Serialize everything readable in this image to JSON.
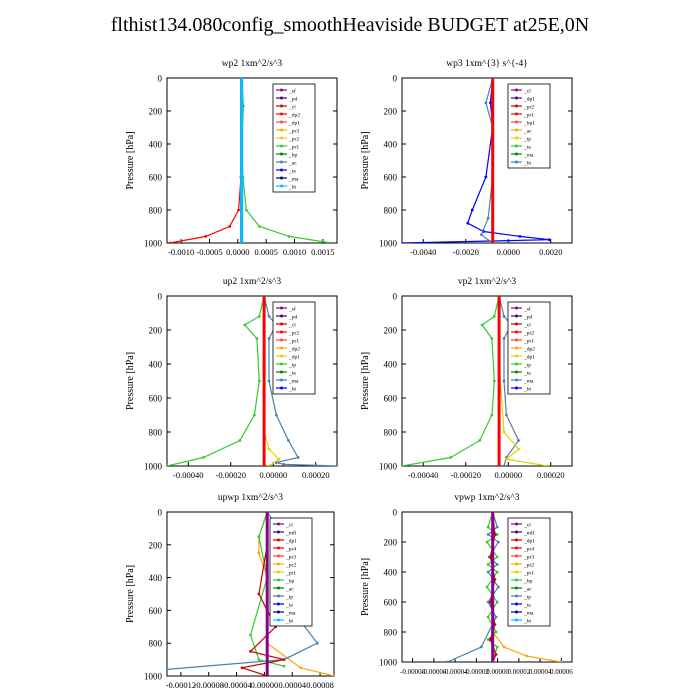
{
  "title": "flthist134.080config_smoothHeaviside  BUDGET at25E,0N",
  "colors": {
    "red": "#ff0000",
    "dred": "#cc0000",
    "purple": "#8b008b",
    "orange": "#ffa500",
    "yellow": "#e6d000",
    "green": "#33cc33",
    "dgreen": "#007f00",
    "blue": "#0000ff",
    "cyan": "#00c0ff",
    "teal": "#4682b4",
    "magenta": "#c000c0",
    "navy": "#000080"
  },
  "chart_data": [
    {
      "type": "line",
      "title": "wp2   1xm^2/s^3",
      "ylabel": "Pressure [hPa]",
      "ylim": [
        1000,
        0
      ],
      "xlim": [
        -0.00125,
        0.0016
      ],
      "yticks": [
        "0",
        "200",
        "400",
        "600",
        "800",
        "1000"
      ],
      "xticks": [
        "-0.0010",
        "-0.0005",
        "0.0000",
        "0.0005",
        "0.0010",
        "0.0015"
      ],
      "legend": [
        "_sf",
        "_pd",
        "_cl",
        "_dp2",
        "_dp1",
        "_pr3",
        "_pr2",
        "_pr1",
        "_bp",
        "_ac",
        "_ta",
        "_ma",
        "_bt"
      ],
      "series": [
        {
          "name": "_dp2",
          "color": "#ff0000",
          "x": [
            0,
            0,
            0,
            -1e-05,
            -5e-05,
            -0.0002,
            -0.0006,
            -0.0012
          ],
          "y": [
            0,
            200,
            400,
            600,
            800,
            900,
            960,
            1000
          ]
        },
        {
          "name": "_pr1",
          "color": "#33cc33",
          "x": [
            0,
            3e-05,
            0,
            2e-05,
            8e-05,
            0.0003,
            0.0008,
            0.0015
          ],
          "y": [
            0,
            170,
            400,
            600,
            800,
            900,
            960,
            1000
          ]
        },
        {
          "name": "_cl",
          "color": "#8b008b",
          "x": [
            0,
            0,
            0,
            0,
            0,
            0
          ],
          "y": [
            0,
            200,
            400,
            600,
            800,
            1000
          ]
        },
        {
          "name": "_bt",
          "color": "#00c0ff",
          "x": [
            0,
            0,
            0,
            0,
            0,
            0
          ],
          "y": [
            0,
            200,
            400,
            600,
            800,
            1000
          ]
        }
      ]
    },
    {
      "type": "line",
      "title": "wp3   1xm^{3} s^{-4}",
      "ylabel": "Pressure [hPa]",
      "ylim": [
        1000,
        0
      ],
      "xlim": [
        -0.004,
        0.0035
      ],
      "yticks": [
        "0",
        "200",
        "400",
        "600",
        "800",
        "1000"
      ],
      "xticks": [
        "-0.0040",
        "-0.0020",
        "0.0000",
        "0.0020"
      ],
      "legend": [
        "_cl",
        "_dp1",
        "_pr2",
        "_pr1",
        "_bp1",
        "_ac",
        "_tp",
        "_ta",
        "_ma",
        "_bt"
      ],
      "series": [
        {
          "name": "_tp",
          "color": "#0000ff",
          "x": [
            0,
            -0.0001,
            0,
            -0.0003,
            -0.0009,
            -0.0011,
            -0.0004,
            0.0012,
            0.0025,
            -0.004
          ],
          "y": [
            0,
            150,
            300,
            600,
            800,
            880,
            930,
            960,
            980,
            1000
          ]
        },
        {
          "name": "_ac",
          "color": "#4682b4",
          "x": [
            0,
            -0.0003,
            0,
            0,
            -0.0002,
            -0.0005,
            0
          ],
          "y": [
            0,
            150,
            300,
            600,
            850,
            950,
            1000
          ]
        },
        {
          "name": "_dp1",
          "color": "#ff0000",
          "x": [
            0,
            0,
            0,
            0,
            0,
            0
          ],
          "y": [
            0,
            200,
            400,
            600,
            800,
            1000
          ]
        }
      ]
    },
    {
      "type": "line",
      "title": "up2   1xm^2/s^3",
      "ylabel": "Pressure [hPa]",
      "ylim": [
        1000,
        0
      ],
      "xlim": [
        -0.0004,
        0.0003
      ],
      "yticks": [
        "0",
        "200",
        "400",
        "600",
        "800",
        "1000"
      ],
      "xticks": [
        "-0.00040",
        "-0.00020",
        "0.00000",
        "0.00020"
      ],
      "legend": [
        "_sf",
        "_pd",
        "_cl",
        "_pr2",
        "_pr1",
        "_dp2",
        "_dp1",
        "_tp",
        "_ta",
        "_ma",
        "_bt"
      ],
      "series": [
        {
          "name": "_dp1",
          "color": "#33cc33",
          "x": [
            0,
            -2e-05,
            -8e-05,
            -3e-05,
            -2e-05,
            -4e-05,
            -0.0001,
            -0.00025,
            -0.0004
          ],
          "y": [
            0,
            120,
            170,
            250,
            500,
            700,
            850,
            950,
            1000
          ]
        },
        {
          "name": "_tp",
          "color": "#4682b4",
          "x": [
            0,
            2e-05,
            5e-05,
            2e-05,
            2e-05,
            5e-05,
            0.0001,
            0.00014,
            5e-05,
            8e-05,
            0.0003
          ],
          "y": [
            0,
            120,
            170,
            250,
            500,
            700,
            850,
            950,
            980,
            990,
            1000
          ]
        },
        {
          "name": "_pr2",
          "color": "#e6d000",
          "x": [
            0,
            0,
            0,
            0,
            2e-05,
            6e-05,
            2e-05
          ],
          "y": [
            0,
            200,
            400,
            800,
            900,
            960,
            1000
          ]
        },
        {
          "name": "_pd",
          "color": "#ff0000",
          "x": [
            0,
            0,
            0,
            0,
            0,
            0
          ],
          "y": [
            0,
            200,
            400,
            600,
            800,
            1000
          ]
        }
      ]
    },
    {
      "type": "line",
      "title": "vp2   1xm^2/s^3",
      "ylabel": "Pressure [hPa]",
      "ylim": [
        1000,
        0
      ],
      "xlim": [
        -0.0004,
        0.0003
      ],
      "yticks": [
        "0",
        "200",
        "400",
        "600",
        "800",
        "1000"
      ],
      "xticks": [
        "-0.00040",
        "-0.00020",
        "0.00000",
        "0.00020"
      ],
      "legend": [
        "_sf",
        "_pd",
        "_cl",
        "_pr2",
        "_pr1",
        "_dp2",
        "_dp1",
        "_tp",
        "_ta",
        "_ma",
        "_bt"
      ],
      "series": [
        {
          "name": "_dp1",
          "color": "#33cc33",
          "x": [
            0,
            -2e-05,
            -7e-05,
            -3e-05,
            -2e-05,
            -3e-05,
            -8e-05,
            -0.0002,
            -0.0004
          ],
          "y": [
            0,
            120,
            170,
            250,
            500,
            700,
            850,
            950,
            1000
          ]
        },
        {
          "name": "_tp",
          "color": "#4682b4",
          "x": [
            0,
            2e-05,
            5e-05,
            2e-05,
            2e-05,
            3e-05,
            8e-05,
            3e-05,
            2e-05
          ],
          "y": [
            0,
            120,
            170,
            250,
            500,
            700,
            850,
            950,
            1000
          ]
        },
        {
          "name": "_pr2",
          "color": "#e6d000",
          "x": [
            0,
            0,
            0,
            2e-05,
            8e-05,
            3e-05,
            0.0002
          ],
          "y": [
            0,
            200,
            400,
            800,
            900,
            960,
            1000
          ]
        },
        {
          "name": "_pd",
          "color": "#ff0000",
          "x": [
            0,
            0,
            0,
            0,
            0,
            0
          ],
          "y": [
            0,
            200,
            400,
            600,
            800,
            1000
          ]
        }
      ]
    },
    {
      "type": "line",
      "title": "upwp   1xm^2/s^3",
      "ylabel": "Pressure [hPa]",
      "ylim": [
        1000,
        0
      ],
      "xlim": [
        -0.00012,
        8e-05
      ],
      "yticks": [
        "0",
        "200",
        "400",
        "600",
        "800",
        "1000"
      ],
      "xticks": [
        "-0.00012",
        "-0.00008",
        "-0.00004",
        "0.00000",
        "0.00004",
        "0.00008"
      ],
      "legend": [
        "_cl",
        "_mfl",
        "_dp1",
        "_pr4",
        "_pr3",
        "_pr2",
        "_pr1",
        "_bp",
        "_ac",
        "_tp",
        "_ta",
        "_ma",
        "_bt"
      ],
      "series": [
        {
          "name": "_pr2",
          "color": "#ffa500",
          "x": [
            0,
            -1e-05,
            -1e-05,
            0,
            0,
            4e-05,
            8e-05
          ],
          "y": [
            0,
            150,
            250,
            400,
            800,
            950,
            1000
          ]
        },
        {
          "name": "_tp",
          "color": "#4682b4",
          "x": [
            0,
            2e-05,
            1e-05,
            3e-05,
            6e-05,
            2e-05,
            -0.00012
          ],
          "y": [
            0,
            150,
            300,
            600,
            800,
            900,
            960
          ]
        },
        {
          "name": "_pr1",
          "color": "#33cc33",
          "x": [
            0,
            -1e-05,
            0,
            -2e-05,
            -1e-05,
            2e-05
          ],
          "y": [
            0,
            150,
            400,
            750,
            900,
            940
          ]
        },
        {
          "name": "_dp1",
          "color": "#cc0000",
          "x": [
            0,
            0,
            -1e-05,
            1e-05,
            -2e-05,
            2e-05,
            -3e-05,
            0
          ],
          "y": [
            0,
            200,
            500,
            700,
            850,
            900,
            950,
            1000
          ]
        },
        {
          "name": "_cl",
          "color": "#8b008b",
          "x": [
            0,
            0,
            0,
            0,
            0,
            0
          ],
          "y": [
            0,
            200,
            400,
            600,
            800,
            1000
          ]
        }
      ]
    },
    {
      "type": "line",
      "title": "vpwp   1xm^2/s^3",
      "ylabel": "Pressure [hPa]",
      "ylim": [
        1000,
        0
      ],
      "xlim": [
        -8e-05,
        7e-05
      ],
      "yticks": [
        "0",
        "200",
        "400",
        "600",
        "800",
        "1000"
      ],
      "xticks": [
        "-0.00008",
        "-0.00006",
        "-0.00004",
        "-0.00002",
        "0.00000",
        "0.00002",
        "0.00004",
        "0.00006"
      ],
      "legend": [
        "_cl",
        "_mfl",
        "_dp1",
        "_pr4",
        "_pr3",
        "_pr2",
        "_pr1",
        "_bp",
        "_ac",
        "_tp",
        "_ta",
        "_ma",
        "_bt"
      ],
      "series": [
        {
          "name": "_pr1",
          "color": "#33cc33",
          "x": [
            0,
            -4e-06,
            4e-06,
            -5e-06,
            4e-06,
            -4e-06,
            4e-06,
            -5e-06,
            4e-06,
            -4e-06,
            3e-06,
            -4e-06,
            4e-06,
            0
          ],
          "y": [
            0,
            100,
            150,
            200,
            300,
            350,
            400,
            500,
            600,
            700,
            800,
            850,
            900,
            1000
          ]
        },
        {
          "name": "_tp",
          "color": "#4682b4",
          "x": [
            0,
            4e-06,
            -4e-06,
            5e-06,
            -3e-06,
            4e-06,
            -4e-06,
            5e-06,
            -4e-06,
            3e-06,
            -1e-05,
            -4e-05
          ],
          "y": [
            0,
            100,
            150,
            200,
            300,
            350,
            400,
            500,
            600,
            700,
            900,
            1000
          ]
        },
        {
          "name": "_pr2",
          "color": "#ffa500",
          "x": [
            0,
            0,
            0,
            0,
            1e-05,
            3e-05,
            6e-05
          ],
          "y": [
            0,
            200,
            400,
            800,
            900,
            960,
            1000
          ]
        },
        {
          "name": "_dp1",
          "color": "#cc0000",
          "x": [
            0,
            2e-06,
            -2e-06,
            2e-06,
            -2e-06,
            2e-06,
            -2e-06,
            3e-06,
            0
          ],
          "y": [
            0,
            150,
            300,
            450,
            600,
            750,
            850,
            950,
            1000
          ]
        },
        {
          "name": "_cl",
          "color": "#8b008b",
          "x": [
            0,
            0,
            0,
            0,
            0,
            0
          ],
          "y": [
            0,
            200,
            400,
            600,
            800,
            1000
          ]
        }
      ]
    }
  ]
}
